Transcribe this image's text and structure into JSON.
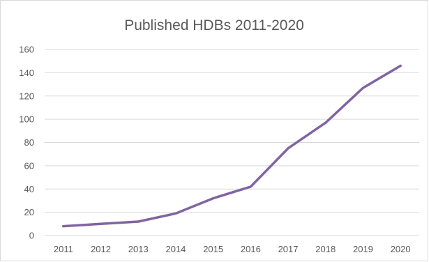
{
  "chart_data": {
    "type": "line",
    "title": "Published HDBs 2011-2020",
    "categories": [
      "2011",
      "2012",
      "2013",
      "2014",
      "2015",
      "2016",
      "2017",
      "2018",
      "2019",
      "2020"
    ],
    "series": [
      {
        "values": [
          8,
          10,
          12,
          19,
          32,
          42,
          75,
          97,
          127,
          146
        ],
        "color": "#8064a2"
      }
    ],
    "yticks": [
      "0",
      "20",
      "40",
      "60",
      "80",
      "100",
      "120",
      "140",
      "160"
    ],
    "ylim": [
      0,
      160
    ],
    "xlabel": "",
    "ylabel": "",
    "grid": true,
    "legend": "none"
  }
}
